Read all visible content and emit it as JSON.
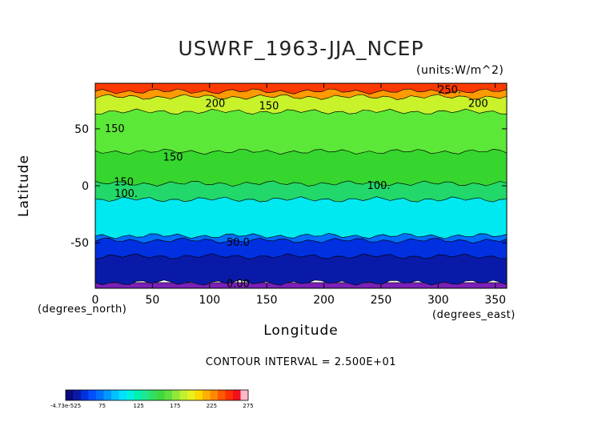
{
  "chart_data": {
    "type": "heatmap",
    "title": "USWRF_1963-JJA_NCEP",
    "units": "(units:W/m^2)",
    "xlabel": "Longitude",
    "ylabel": "Latitude",
    "xunit_left": "(degrees_north)",
    "xunit_right": "(degrees_east)",
    "contour_interval": "CONTOUR INTERVAL = 2.500E+01",
    "xlim": [
      0,
      360
    ],
    "ylim": [
      -90,
      90
    ],
    "xticks": [
      0,
      50,
      100,
      150,
      200,
      250,
      300,
      350
    ],
    "yticks": [
      50,
      0,
      -50
    ],
    "bands": [
      {
        "lat_from": -90,
        "lat_to": -85,
        "value": -5,
        "color": "#7a20b8"
      },
      {
        "lat_from": -85,
        "lat_to": -62,
        "value": 15,
        "color": "#0a1aa8"
      },
      {
        "lat_from": -62,
        "lat_to": -48,
        "value": 40,
        "color": "#0030e0"
      },
      {
        "lat_from": -48,
        "lat_to": -44,
        "value": 60,
        "color": "#0070ff"
      },
      {
        "lat_from": -44,
        "lat_to": -12,
        "value": 90,
        "color": "#00e8f0"
      },
      {
        "lat_from": -12,
        "lat_to": 2,
        "value": 110,
        "color": "#22d86a"
      },
      {
        "lat_from": 2,
        "lat_to": 30,
        "value": 135,
        "color": "#36d62e"
      },
      {
        "lat_from": 30,
        "lat_to": 65,
        "value": 150,
        "color": "#5ce838"
      },
      {
        "lat_from": 65,
        "lat_to": 78,
        "value": 175,
        "color": "#c8f22a"
      },
      {
        "lat_from": 78,
        "lat_to": 83,
        "value": 210,
        "color": "#ff9a00"
      },
      {
        "lat_from": 83,
        "lat_to": 90,
        "value": 230,
        "color": "#ff3a00"
      }
    ],
    "contour_labels": [
      {
        "text": "250.",
        "lon": 310,
        "lat": 84
      },
      {
        "text": "200",
        "lon": 105,
        "lat": 72
      },
      {
        "text": "150",
        "lon": 152,
        "lat": 70
      },
      {
        "text": "200",
        "lon": 335,
        "lat": 72
      },
      {
        "text": "150",
        "lon": 17,
        "lat": 50
      },
      {
        "text": "150",
        "lon": 68,
        "lat": 25
      },
      {
        "text": "150",
        "lon": 25,
        "lat": 3
      },
      {
        "text": "100.",
        "lon": 27,
        "lat": -7
      },
      {
        "text": "100.",
        "lon": 248,
        "lat": 0
      },
      {
        "text": "50.0",
        "lon": 125,
        "lat": -50
      },
      {
        "text": "0.00",
        "lon": 125,
        "lat": -86
      }
    ],
    "colorbar": {
      "labels": [
        "-4.73e-525",
        "75",
        "125",
        "175",
        "225",
        "275"
      ],
      "colors": [
        "#0a0a7a",
        "#0a1aa8",
        "#0030e0",
        "#0050ff",
        "#0070ff",
        "#0098ff",
        "#00c0ff",
        "#00e0ff",
        "#00f0e0",
        "#00f0b0",
        "#20e890",
        "#30e060",
        "#40d840",
        "#60e040",
        "#90e838",
        "#c0f030",
        "#e8f020",
        "#ffd800",
        "#ffb000",
        "#ff8800",
        "#ff5800",
        "#ff3000",
        "#f01020",
        "#ffb8c8"
      ]
    }
  }
}
